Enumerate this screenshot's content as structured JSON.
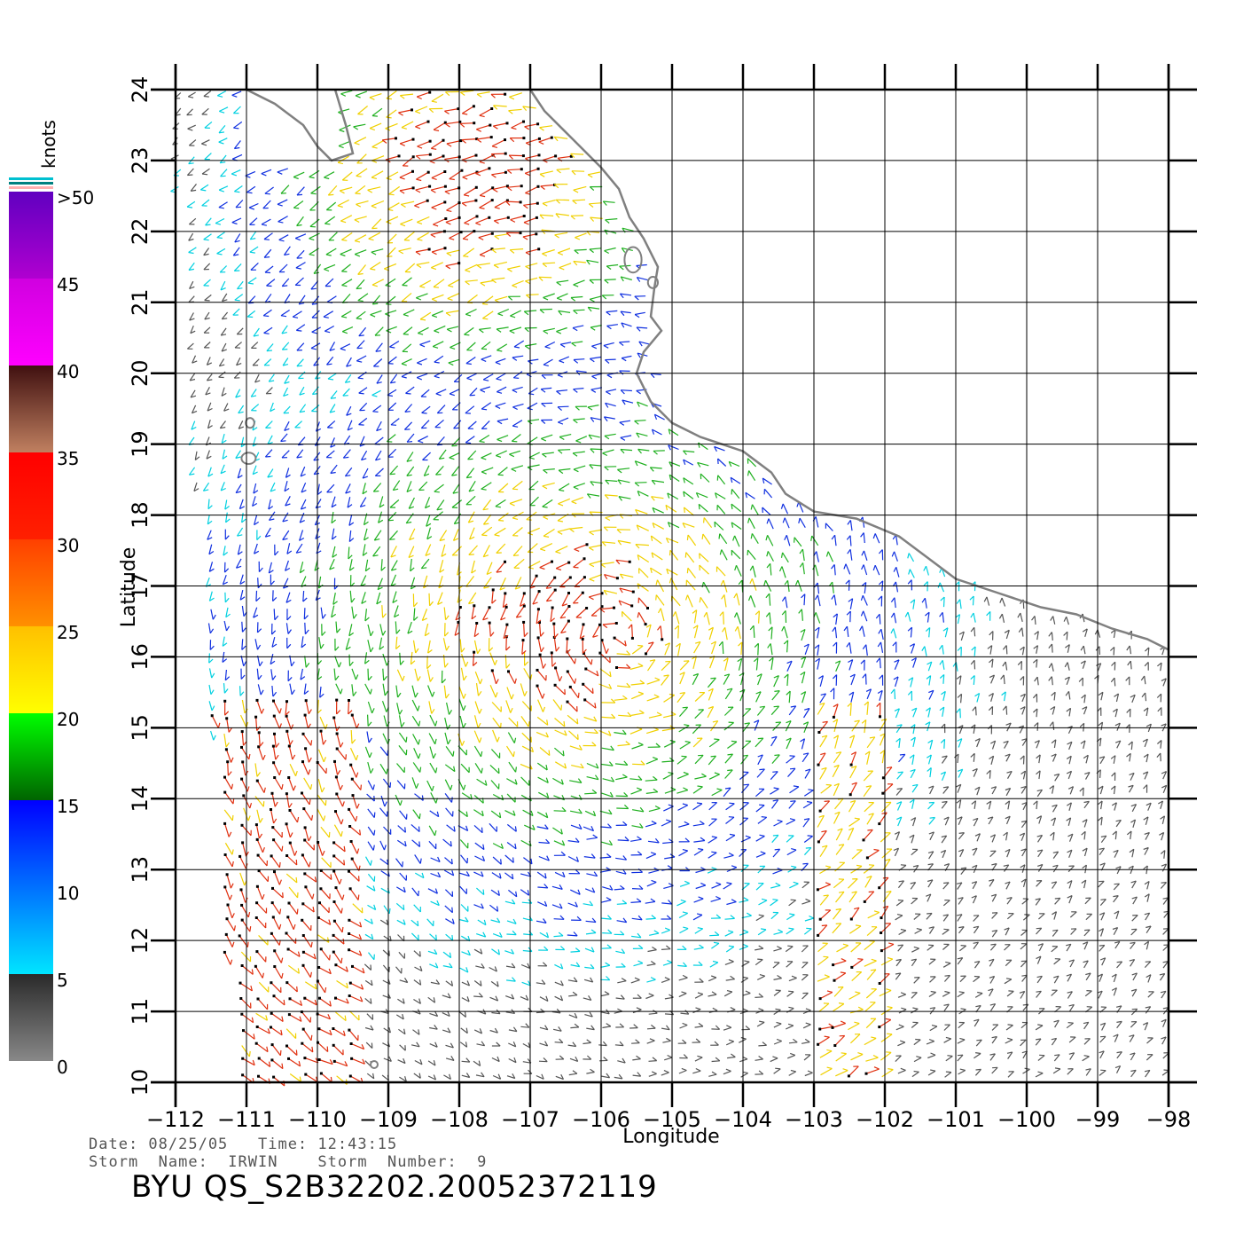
{
  "map": {
    "x_axis_title": "Longitude",
    "y_axis_title": "Latitude",
    "lon_range": [
      -112,
      -98
    ],
    "lat_range": [
      10,
      24
    ],
    "lon_ticks": [
      -112,
      -111,
      -110,
      -109,
      -108,
      -107,
      -106,
      -105,
      -104,
      -103,
      -102,
      -101,
      -100,
      -99,
      -98
    ],
    "lat_ticks": [
      10,
      11,
      12,
      13,
      14,
      15,
      16,
      17,
      18,
      19,
      20,
      21,
      22,
      23,
      24
    ],
    "lon_tick_labels": [
      "−112",
      "−111",
      "−110",
      "−109",
      "−108",
      "−107",
      "−106",
      "−105",
      "−104",
      "−103",
      "−102",
      "−101",
      "−100",
      "−99",
      "−98"
    ],
    "lat_tick_labels": [
      "10",
      "11",
      "12",
      "13",
      "14",
      "15",
      "16",
      "17",
      "18",
      "19",
      "20",
      "21",
      "22",
      "23",
      "24"
    ],
    "grid": true,
    "coastline_color": "#808080",
    "coastline": [
      [
        -111.0,
        24.0
      ],
      [
        -110.6,
        23.8
      ],
      [
        -110.2,
        23.5
      ],
      [
        -110.0,
        23.2
      ],
      [
        -109.8,
        23.0
      ],
      [
        -109.5,
        23.1
      ],
      [
        -109.6,
        23.5
      ],
      [
        -109.75,
        24.0
      ]
    ],
    "mainland_coast": [
      [
        -107.0,
        24.0
      ],
      [
        -106.8,
        23.7
      ],
      [
        -106.4,
        23.3
      ],
      [
        -106.0,
        22.9
      ],
      [
        -105.75,
        22.6
      ],
      [
        -105.6,
        22.2
      ],
      [
        -105.4,
        21.9
      ],
      [
        -105.2,
        21.5
      ],
      [
        -105.25,
        21.2
      ],
      [
        -105.3,
        20.8
      ],
      [
        -105.15,
        20.6
      ],
      [
        -105.4,
        20.3
      ],
      [
        -105.5,
        20.0
      ],
      [
        -105.3,
        19.6
      ],
      [
        -105.0,
        19.3
      ],
      [
        -104.6,
        19.1
      ],
      [
        -104.0,
        18.9
      ],
      [
        -103.6,
        18.6
      ],
      [
        -103.4,
        18.3
      ],
      [
        -103.0,
        18.05
      ],
      [
        -102.4,
        17.95
      ],
      [
        -101.8,
        17.7
      ],
      [
        -101.4,
        17.4
      ],
      [
        -101.0,
        17.1
      ],
      [
        -100.4,
        16.9
      ],
      [
        -99.8,
        16.7
      ],
      [
        -99.3,
        16.6
      ],
      [
        -98.8,
        16.4
      ],
      [
        -98.3,
        16.25
      ],
      [
        -98.0,
        16.1
      ]
    ],
    "islands": [
      {
        "name": "",
        "lon": -105.55,
        "lat": 21.6,
        "rx": 0.12,
        "ry": 0.18
      },
      {
        "name": "",
        "lon": -105.27,
        "lat": 21.28,
        "rx": 0.07,
        "ry": 0.08
      },
      {
        "name": "",
        "lon": -110.95,
        "lat": 19.3,
        "rx": 0.06,
        "ry": 0.07
      },
      {
        "name": "",
        "lon": -110.97,
        "lat": 18.8,
        "rx": 0.1,
        "ry": 0.08
      },
      {
        "name": "",
        "lon": -109.2,
        "lat": 10.25,
        "rx": 0.05,
        "ry": 0.05
      }
    ]
  },
  "colorbar": {
    "unit_label": "knots",
    "labels": [
      ">50",
      "45",
      "40",
      "35",
      "30",
      "25",
      "20",
      "15",
      "10",
      "5",
      "0"
    ],
    "bands": [
      {
        "from": 0,
        "to": 5,
        "colors": [
          "#888888",
          "#2a2a2a"
        ]
      },
      {
        "from": 5,
        "to": 10,
        "colors": [
          "#00e5ff",
          "#0070ff"
        ]
      },
      {
        "from": 10,
        "to": 15,
        "colors": [
          "#0070ff",
          "#0000ff"
        ]
      },
      {
        "from": 15,
        "to": 20,
        "colors": [
          "#006400",
          "#00ff00"
        ]
      },
      {
        "from": 20,
        "to": 25,
        "colors": [
          "#ffff00",
          "#ffc000"
        ]
      },
      {
        "from": 25,
        "to": 30,
        "colors": [
          "#ff9000",
          "#ff4000"
        ]
      },
      {
        "from": 30,
        "to": 35,
        "colors": [
          "#ff2000",
          "#ff0000"
        ]
      },
      {
        "from": 35,
        "to": 40,
        "colors": [
          "#c08060",
          "#401010"
        ]
      },
      {
        "from": 40,
        "to": 45,
        "colors": [
          "#ff00ff",
          "#d000e0"
        ]
      },
      {
        "from": 45,
        "to": 50,
        "colors": [
          "#b000d0",
          "#6000c0"
        ]
      }
    ]
  },
  "wind_field": {
    "description_colors": {
      "calm": "#555555",
      "light": "#00d0e0",
      "moderate": "#1030e0",
      "fresh": "#20b020",
      "strong": "#f0d000",
      "gale": "#e03010",
      "storm": "#c000c0"
    }
  },
  "info": {
    "date_line": "Date: 08/25/05   Time: 12:43:15",
    "storm_line": "Storm  Name:  IRWIN    Storm  Number:  9",
    "product_id": "BYU  QS_S2B32202.20052372119"
  }
}
